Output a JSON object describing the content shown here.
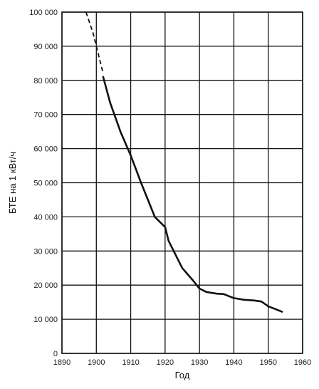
{
  "chart_data": {
    "type": "line",
    "title": "",
    "xlabel": "Год",
    "ylabel": "БТЕ на 1 кВт/ч",
    "xlim": [
      1890,
      1960
    ],
    "ylim": [
      0,
      100000
    ],
    "grid": true,
    "x_ticks": [
      1890,
      1900,
      1910,
      1920,
      1930,
      1940,
      1950,
      1960
    ],
    "x_tick_labels": [
      "1890",
      "1900",
      "1910",
      "1920",
      "1930",
      "1940",
      "1950",
      "1960"
    ],
    "y_ticks": [
      0,
      10000,
      20000,
      30000,
      40000,
      50000,
      60000,
      70000,
      80000,
      90000,
      100000
    ],
    "y_tick_labels": [
      "0",
      "10 000",
      "20 000",
      "30 000",
      "40 000",
      "50 000",
      "60 000",
      "70 000",
      "80 000",
      "90 000",
      "100 000"
    ],
    "series": [
      {
        "style": "dashed",
        "x": [
          1897,
          1899,
          1900,
          1902
        ],
        "y": [
          100000,
          94000,
          90000,
          82000
        ]
      },
      {
        "style": "solid",
        "x": [
          1902,
          1904,
          1907,
          1910,
          1913,
          1917,
          1920,
          1921,
          1923,
          1925,
          1928,
          1930,
          1932,
          1935,
          1937,
          1940,
          1943,
          1946,
          1948,
          1950,
          1952,
          1954
        ],
        "y": [
          81000,
          73500,
          65000,
          58000,
          50000,
          40000,
          37000,
          33000,
          29000,
          25000,
          21500,
          19000,
          18000,
          17500,
          17400,
          16200,
          15700,
          15500,
          15200,
          13800,
          13000,
          12200
        ]
      }
    ]
  }
}
